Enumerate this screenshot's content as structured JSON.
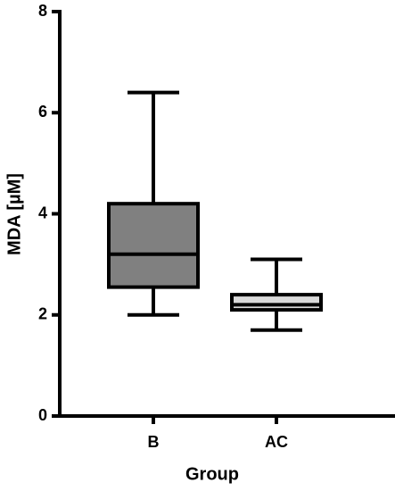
{
  "chart_data": {
    "type": "box",
    "x_label": "Group",
    "y_label": "MDA [µM]",
    "categories": [
      "B",
      "AC"
    ],
    "boxes": [
      {
        "min": 2.0,
        "q1": 2.55,
        "median": 3.2,
        "q3": 4.2,
        "max": 6.4
      },
      {
        "min": 1.7,
        "q1": 2.1,
        "median": 2.2,
        "q3": 2.4,
        "max": 3.1
      }
    ],
    "colors": [
      "#808080",
      "#d9d9d9"
    ],
    "ylim": [
      0,
      8
    ],
    "yticks": [
      0,
      2,
      4,
      6,
      8
    ],
    "grid": false
  }
}
